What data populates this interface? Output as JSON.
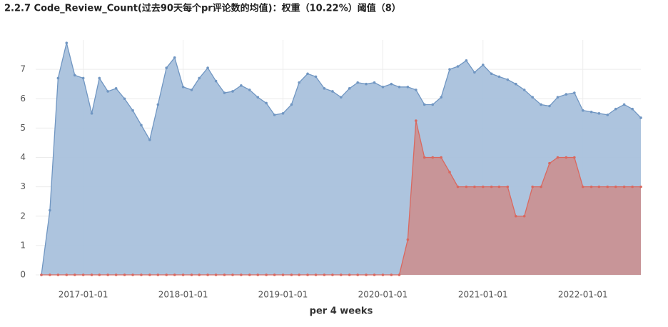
{
  "chart_data": {
    "type": "area",
    "title": "2.2.7 Code_Review_Count(过去90天每个pr评论数的均值)：权重（10.22%）阈值（8）",
    "x_label": "per 4 weeks",
    "x": [
      "2016-08-01",
      "2016-09-01",
      "2016-10-01",
      "2016-11-01",
      "2016-12-01",
      "2017-01-01",
      "2017-02-01",
      "2017-03-01",
      "2017-04-01",
      "2017-05-01",
      "2017-06-01",
      "2017-07-01",
      "2017-08-01",
      "2017-09-01",
      "2017-10-01",
      "2017-11-01",
      "2017-12-01",
      "2018-01-01",
      "2018-02-01",
      "2018-03-01",
      "2018-04-01",
      "2018-05-01",
      "2018-06-01",
      "2018-07-01",
      "2018-08-01",
      "2018-09-01",
      "2018-10-01",
      "2018-11-01",
      "2018-12-01",
      "2019-01-01",
      "2019-02-01",
      "2019-03-01",
      "2019-04-01",
      "2019-05-01",
      "2019-06-01",
      "2019-07-01",
      "2019-08-01",
      "2019-09-01",
      "2019-10-01",
      "2019-11-01",
      "2019-12-01",
      "2020-01-01",
      "2020-02-01",
      "2020-03-01",
      "2020-04-01",
      "2020-05-01",
      "2020-06-01",
      "2020-07-01",
      "2020-08-01",
      "2020-09-01",
      "2020-10-01",
      "2020-11-01",
      "2020-12-01",
      "2021-01-01",
      "2021-02-01",
      "2021-03-01",
      "2021-04-01",
      "2021-05-01",
      "2021-06-01",
      "2021-07-01",
      "2021-08-01",
      "2021-09-01",
      "2021-10-01",
      "2021-11-01",
      "2021-12-01",
      "2022-01-01",
      "2022-02-01",
      "2022-03-01",
      "2022-04-01",
      "2022-05-01",
      "2022-06-01",
      "2022-07-01",
      "2022-08-01"
    ],
    "series": [
      {
        "color": "#7096c2",
        "fill": "#a9c1dc",
        "values": [
          0,
          2.2,
          6.7,
          7.9,
          6.8,
          6.7,
          5.5,
          6.7,
          6.25,
          6.35,
          6.0,
          5.6,
          5.1,
          4.6,
          5.8,
          7.05,
          7.4,
          6.4,
          6.3,
          6.7,
          7.05,
          6.6,
          6.2,
          6.25,
          6.45,
          6.3,
          6.05,
          5.85,
          5.45,
          5.5,
          5.8,
          6.55,
          6.85,
          6.75,
          6.35,
          6.25,
          6.05,
          6.35,
          6.55,
          6.5,
          6.55,
          6.4,
          6.5,
          6.4,
          6.4,
          6.3,
          5.8,
          5.8,
          6.05,
          7.0,
          7.1,
          7.3,
          6.9,
          7.15,
          6.85,
          6.75,
          6.65,
          6.5,
          6.3,
          6.05,
          5.8,
          5.75,
          6.05,
          6.15,
          6.2,
          5.6,
          5.55,
          5.5,
          5.45,
          5.65,
          5.8,
          5.65,
          5.35
        ]
      },
      {
        "color": "#d9685f",
        "fill": "#c99294",
        "values": [
          0,
          0,
          0,
          0,
          0,
          0,
          0,
          0,
          0,
          0,
          0,
          0,
          0,
          0,
          0,
          0,
          0,
          0,
          0,
          0,
          0,
          0,
          0,
          0,
          0,
          0,
          0,
          0,
          0,
          0,
          0,
          0,
          0,
          0,
          0,
          0,
          0,
          0,
          0,
          0,
          0,
          0,
          0,
          0,
          1.2,
          5.25,
          4,
          4,
          4,
          3.5,
          3,
          3,
          3,
          3,
          3,
          3,
          3,
          2,
          2,
          3,
          3,
          3.8,
          4,
          4,
          4,
          3,
          3,
          3,
          3,
          3,
          3,
          3,
          3
        ]
      }
    ],
    "xlim": [
      "2016-08-01",
      "2022-08-01"
    ],
    "xticks": [
      "2017-01-01",
      "2018-01-01",
      "2019-01-01",
      "2020-01-01",
      "2021-01-01",
      "2022-01-01"
    ],
    "ylim": [
      0,
      8
    ],
    "yticks": [
      0,
      1,
      2,
      3,
      4,
      5,
      6,
      7
    ],
    "grid": true
  }
}
